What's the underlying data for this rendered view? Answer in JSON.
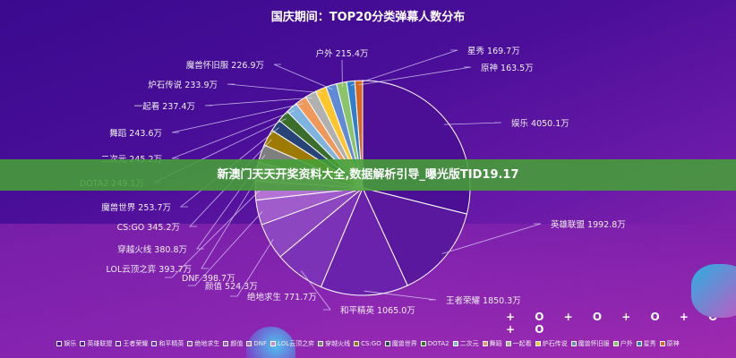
{
  "title": "国庆期间：TOP20分类弹幕人数分布",
  "banner": "新澳门天天开奖资料大全,数据解析引导_曝光版TID19.17",
  "decoration": "+ O + O + O + O + O",
  "chart_data": {
    "type": "pie",
    "title": "国庆期间：TOP20分类弹幕人数分布",
    "unit": "万",
    "legend_position": "bottom",
    "categories": [
      "娱乐",
      "英雄联盟",
      "王者荣耀",
      "和平精英",
      "绝地求生",
      "颜值",
      "DNF",
      "LOL云顶之弈",
      "穿越火线",
      "CS:GO",
      "魔兽世界",
      "DOTA2",
      "二次元",
      "舞蹈",
      "一起看",
      "炉石传说",
      "魔兽怀旧服",
      "户外",
      "星秀",
      "原神"
    ],
    "values": [
      4050.1,
      1992.8,
      1850.3,
      1065.0,
      771.7,
      524.3,
      398.7,
      393.7,
      380.8,
      345.2,
      253.7,
      249.1,
      245.2,
      243.6,
      237.4,
      233.9,
      226.9,
      215.4,
      169.7,
      163.5
    ],
    "labels": [
      "娱乐 4050.1万",
      "英雄联盟 1992.8万",
      "王者荣耀 1850.3万",
      "和平精英 1065.0万",
      "绝地求生 771.7万",
      "颜值 524.3万",
      "DNF 398.7万",
      "LOL云顶之弈 393.7万",
      "穿越火线 380.8万",
      "CS:GO 345.2万",
      "魔兽世界 253.7万",
      "DOTA2 249.1万",
      "二次元 245.2万",
      "舞蹈 243.6万",
      "一起看 237.4万",
      "炉石传说 233.9万",
      "魔兽怀旧服 226.9万",
      "户外 215.4万",
      "星秀 169.7万",
      "原神 163.5万"
    ],
    "colors": [
      "#4a0f95",
      "#5a189f",
      "#6a22ad",
      "#7b32b6",
      "#8c46c0",
      "#a05ccb",
      "#b472d4",
      "#c886de",
      "#7f7f7f",
      "#9e7a00",
      "#264478",
      "#3b6e2a",
      "#7fb4e0",
      "#f0985a",
      "#b0b0b0",
      "#ffc52a",
      "#5f8ad8",
      "#8cc46a",
      "#2f7fd0",
      "#d8681c"
    ]
  }
}
